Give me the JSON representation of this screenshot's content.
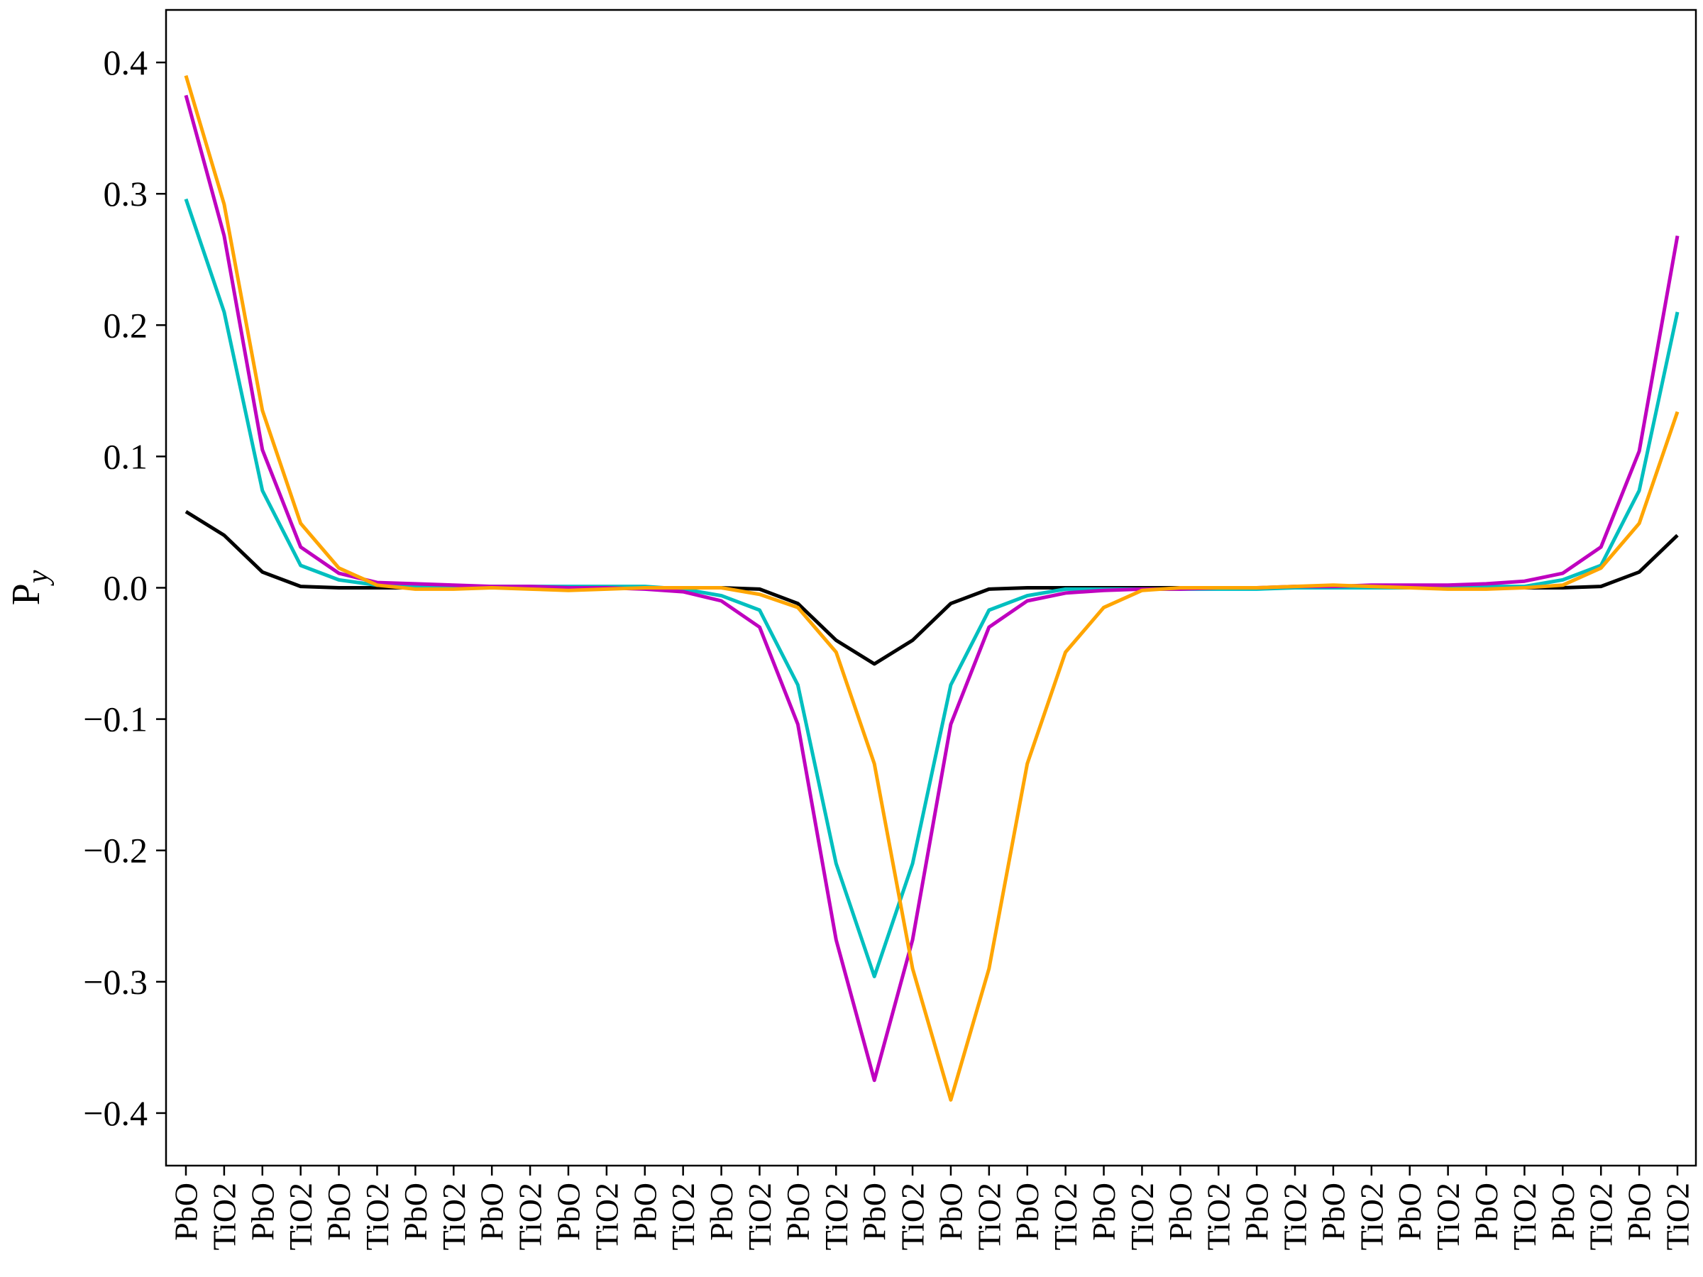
{
  "chart_data": {
    "type": "line",
    "title": "",
    "xlabel": "",
    "ylabel": "P",
    "ylabel_subscript": "y",
    "ylim": [
      -0.44,
      0.44
    ],
    "y_ticks": [
      0.4,
      0.3,
      0.2,
      0.1,
      0.0,
      -0.1,
      -0.2,
      -0.3,
      -0.4
    ],
    "y_tick_labels": [
      "0.4",
      "0.3",
      "0.2",
      "0.1",
      "0.0",
      "−0.1",
      "−0.2",
      "−0.3",
      "−0.4"
    ],
    "categories": [
      "PbO",
      "TiO2",
      "PbO",
      "TiO2",
      "PbO",
      "TiO2",
      "PbO",
      "TiO2",
      "PbO",
      "TiO2",
      "PbO",
      "TiO2",
      "PbO",
      "TiO2",
      "PbO",
      "TiO2",
      "PbO",
      "TiO2",
      "PbO",
      "TiO2",
      "PbO",
      "TiO2",
      "PbO",
      "TiO2",
      "PbO",
      "TiO2",
      "PbO",
      "TiO2",
      "PbO",
      "TiO2",
      "PbO",
      "TiO2",
      "PbO",
      "TiO2",
      "PbO",
      "TiO2",
      "PbO",
      "TiO2",
      "PbO",
      "TiO2"
    ],
    "grid": false,
    "legend": "none",
    "series": [
      {
        "color": "#000000",
        "values": [
          0.058,
          0.04,
          0.012,
          0.001,
          0.0,
          0.0,
          0.0,
          0.0,
          0.0,
          0.0,
          0.0,
          0.0,
          0.0,
          0.0,
          0.0,
          -0.001,
          -0.012,
          -0.04,
          -0.058,
          -0.04,
          -0.012,
          -0.001,
          0.0,
          0.0,
          0.0,
          0.0,
          0.0,
          0.0,
          0.0,
          0.0,
          0.0,
          0.0,
          0.0,
          0.0,
          0.0,
          0.0,
          0.0,
          0.001,
          0.012,
          0.04
        ]
      },
      {
        "color": "#00BFBF",
        "values": [
          0.296,
          0.21,
          0.074,
          0.017,
          0.006,
          0.002,
          0.001,
          0.001,
          0.001,
          0.001,
          0.001,
          0.001,
          0.001,
          -0.001,
          -0.006,
          -0.017,
          -0.074,
          -0.21,
          -0.296,
          -0.21,
          -0.074,
          -0.017,
          -0.006,
          -0.001,
          -0.001,
          -0.001,
          -0.001,
          -0.001,
          -0.001,
          0.0,
          0.0,
          0.0,
          0.0,
          0.0,
          0.001,
          0.001,
          0.006,
          0.017,
          0.074,
          0.21
        ]
      },
      {
        "color": "#BF00BF",
        "values": [
          0.375,
          0.268,
          0.105,
          0.031,
          0.011,
          0.004,
          0.003,
          0.002,
          0.001,
          0.001,
          0.0,
          0.0,
          -0.001,
          -0.003,
          -0.01,
          -0.03,
          -0.104,
          -0.268,
          -0.375,
          -0.268,
          -0.104,
          -0.03,
          -0.01,
          -0.004,
          -0.002,
          -0.001,
          -0.001,
          0.0,
          0.0,
          0.001,
          0.001,
          0.002,
          0.002,
          0.002,
          0.003,
          0.005,
          0.011,
          0.031,
          0.104,
          0.268
        ]
      },
      {
        "color": "#FFA500",
        "values": [
          0.39,
          0.292,
          0.135,
          0.049,
          0.015,
          0.002,
          -0.001,
          -0.001,
          0.0,
          -0.001,
          -0.002,
          -0.001,
          0.0,
          0.0,
          0.0,
          -0.005,
          -0.015,
          -0.049,
          -0.134,
          -0.29,
          -0.39,
          -0.29,
          -0.134,
          -0.049,
          -0.015,
          -0.002,
          0.0,
          0.0,
          0.0,
          0.001,
          0.002,
          0.001,
          0.0,
          -0.001,
          -0.001,
          0.0,
          0.002,
          0.015,
          0.049,
          0.134
        ]
      }
    ]
  }
}
